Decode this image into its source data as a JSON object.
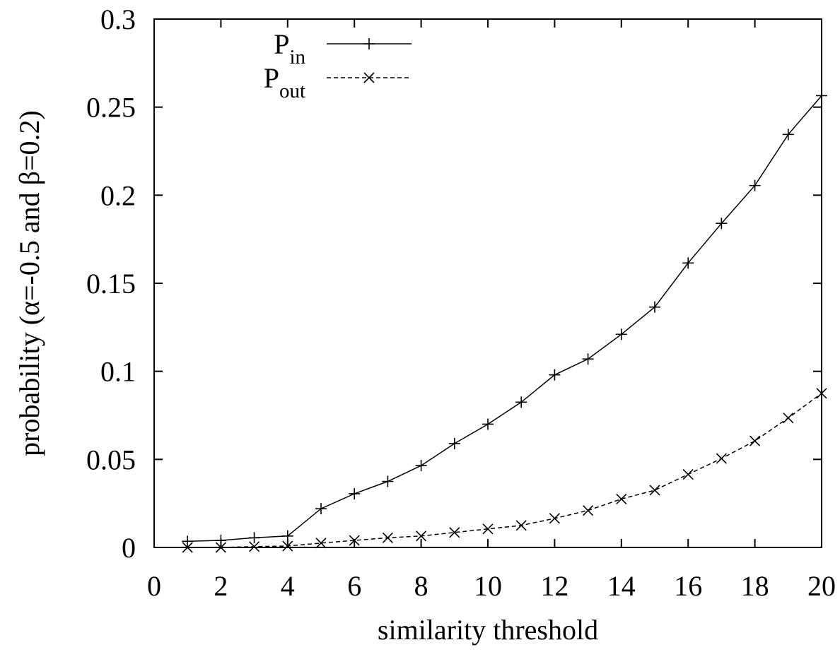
{
  "chart_data": {
    "type": "line",
    "xlabel": "similarity threshold",
    "ylabel": "probability (α=-0.5 and β=0.2)",
    "xlim": [
      0,
      20
    ],
    "ylim": [
      0,
      0.3
    ],
    "x_ticks": [
      "0",
      "2",
      "4",
      "6",
      "8",
      "10",
      "12",
      "14",
      "16",
      "18",
      "20"
    ],
    "y_ticks": [
      "0",
      "0.05",
      "0.1",
      "0.15",
      "0.2",
      "0.25",
      "0.3"
    ],
    "grid": false,
    "legend_position": "top-center",
    "x": [
      1,
      2,
      3,
      4,
      5,
      6,
      7,
      8,
      9,
      10,
      11,
      12,
      13,
      14,
      15,
      16,
      17,
      18,
      19,
      20
    ],
    "series": [
      {
        "name": "P",
        "subscript": "in",
        "style": "solid",
        "marker": "plus",
        "color": "#000000",
        "values": [
          0.0035,
          0.004,
          0.0055,
          0.0065,
          0.022,
          0.0305,
          0.0375,
          0.0465,
          0.059,
          0.07,
          0.0825,
          0.098,
          0.107,
          0.121,
          0.1365,
          0.1615,
          0.184,
          0.2055,
          0.2345,
          0.2565
        ]
      },
      {
        "name": "P",
        "subscript": "out",
        "style": "dashed",
        "marker": "cross",
        "color": "#000000",
        "values": [
          0.0,
          0.0,
          0.0005,
          0.0008,
          0.0025,
          0.004,
          0.0055,
          0.0065,
          0.0085,
          0.0105,
          0.0125,
          0.0165,
          0.021,
          0.0275,
          0.0325,
          0.0415,
          0.0505,
          0.0605,
          0.0735,
          0.0875
        ]
      }
    ]
  }
}
